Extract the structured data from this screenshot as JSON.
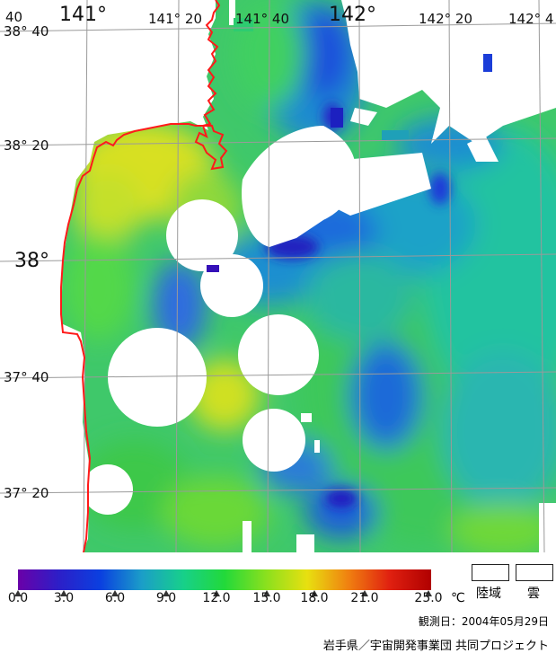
{
  "map": {
    "lon_labels": [
      {
        "text": "141°",
        "big": true
      },
      {
        "text": "141° 20",
        "big": false
      },
      {
        "text": "141° 40",
        "big": false
      },
      {
        "text": "142°",
        "big": true
      },
      {
        "text": "142° 20",
        "big": false
      },
      {
        "text": "142° 4",
        "big": false
      }
    ],
    "corner_label": "40",
    "lat_labels": [
      {
        "text": "38° 40",
        "big": false
      },
      {
        "text": "38° 20",
        "big": false
      },
      {
        "text": "38°",
        "big": true
      },
      {
        "text": "37° 40",
        "big": false
      },
      {
        "text": "37° 20",
        "big": false
      }
    ],
    "colors": {
      "coastline": "#ff1a1a",
      "grid": "#9a9a9a",
      "cloud": "#ffffff"
    }
  },
  "legend": {
    "ticks": [
      "0.0",
      "3.0",
      "6.0",
      "9.0",
      "12.0",
      "15.0",
      "18.0",
      "21.0",
      "25.0"
    ],
    "unit": "℃",
    "land_label": "陸域",
    "cloud_label": "雲",
    "date": "観測日：2004年05月29日",
    "credit": "岩手県／宇宙開発事業団 共同プロジェクト",
    "gradient_colors": [
      "#6a00a8",
      "#2c1fc8",
      "#0a40e0",
      "#1b9ec8",
      "#17d08a",
      "#22d93a",
      "#8ae01e",
      "#e8e010",
      "#f08010",
      "#e02010",
      "#b00000"
    ]
  }
}
